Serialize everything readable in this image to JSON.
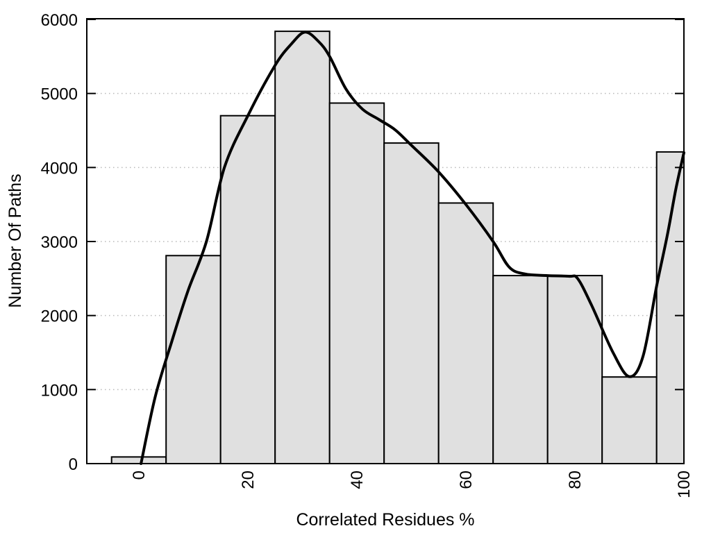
{
  "chart_data": {
    "type": "bar",
    "subtype": "histogram_with_smooth_curve",
    "title": "",
    "xlabel": "Correlated Residues %",
    "ylabel": "Number Of Paths",
    "xlim": [
      -9.55,
      100
    ],
    "ylim": [
      0,
      6000
    ],
    "x_ticks": [
      0,
      20,
      40,
      60,
      80,
      100
    ],
    "y_ticks": [
      0,
      1000,
      2000,
      3000,
      4000,
      5000,
      6000
    ],
    "x_tick_labels": [
      "0",
      "20",
      "40",
      "60",
      "80",
      "100"
    ],
    "y_tick_labels": [
      "0",
      "1000",
      "2000",
      "3000",
      "4000",
      "5000",
      "6000"
    ],
    "x_tick_labels_rotated_degrees": -90,
    "grid": {
      "axis": "y",
      "style": "dotted",
      "color": "#b8b8b8",
      "lines_at": [
        1000,
        2000,
        3000,
        4000,
        5000
      ]
    },
    "legend": null,
    "categories": [
      0,
      10,
      20,
      30,
      40,
      50,
      60,
      70,
      80,
      90,
      100
    ],
    "values": [
      90,
      2810,
      4700,
      5840,
      4870,
      4330,
      3520,
      2540,
      2540,
      1170,
      4210
    ],
    "bars": {
      "bin_width": 10,
      "centers": [
        0,
        10,
        20,
        30,
        40,
        50,
        60,
        70,
        80,
        90,
        100
      ],
      "values": [
        90,
        2810,
        4700,
        5840,
        4870,
        4330,
        3520,
        2540,
        2540,
        1170,
        4210
      ],
      "fill_color": "#e0e0e0",
      "border_color": "#000000",
      "last_bin_clipped_at_x": 100
    },
    "curve": {
      "color": "#000000",
      "stroke_width": 4,
      "points": [
        [
          0.4,
          0
        ],
        [
          3,
          900
        ],
        [
          6,
          1640
        ],
        [
          9,
          2330
        ],
        [
          12.4,
          3000
        ],
        [
          15.7,
          4000
        ],
        [
          20,
          4700
        ],
        [
          25,
          5380
        ],
        [
          28,
          5670
        ],
        [
          30.5,
          5828
        ],
        [
          33,
          5700
        ],
        [
          35,
          5500
        ],
        [
          38,
          5060
        ],
        [
          41,
          4790
        ],
        [
          44,
          4650
        ],
        [
          47,
          4510
        ],
        [
          50,
          4300
        ],
        [
          55,
          3940
        ],
        [
          60,
          3500
        ],
        [
          65,
          3000
        ],
        [
          68,
          2650
        ],
        [
          71,
          2560
        ],
        [
          75,
          2540
        ],
        [
          79,
          2530
        ],
        [
          80.5,
          2500
        ],
        [
          83,
          2150
        ],
        [
          87,
          1500
        ],
        [
          90,
          1175
        ],
        [
          92.5,
          1450
        ],
        [
          95,
          2400
        ],
        [
          97,
          3100
        ],
        [
          98.5,
          3700
        ],
        [
          100,
          4200
        ]
      ]
    },
    "colors": {
      "background": "#ffffff",
      "plot_border": "#000000",
      "bar_fill": "#e0e0e0",
      "curve": "#000000",
      "grid": "#b8b8b8"
    }
  }
}
